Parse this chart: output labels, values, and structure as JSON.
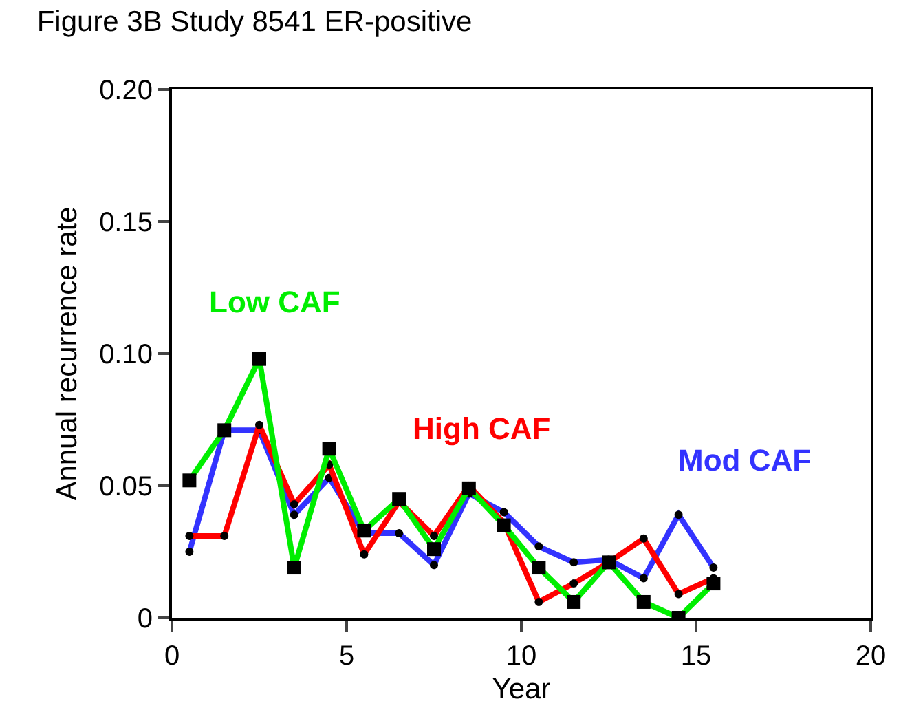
{
  "chart_data": {
    "type": "line",
    "title": "Figure 3B Study 8541 ER-positive",
    "xlabel": "Year",
    "ylabel": "Annual recurrence rate",
    "x": [
      0.5,
      1.5,
      2.5,
      3.5,
      4.5,
      5.5,
      6.5,
      7.5,
      8.5,
      9.5,
      10.5,
      11.5,
      12.5,
      13.5,
      14.5,
      15.5
    ],
    "series": [
      {
        "name": "Low CAF",
        "color": "#00ee00",
        "marker": "square",
        "values": [
          0.052,
          0.071,
          0.098,
          0.019,
          0.064,
          0.033,
          0.045,
          0.026,
          0.049,
          0.035,
          0.019,
          0.006,
          0.021,
          0.006,
          0.0,
          0.013
        ]
      },
      {
        "name": "High CAF",
        "color": "#ff0000",
        "marker": "circle",
        "values": [
          0.031,
          0.031,
          0.073,
          0.043,
          0.058,
          0.024,
          0.044,
          0.031,
          0.05,
          0.036,
          0.006,
          0.013,
          0.021,
          0.03,
          0.009,
          0.015
        ]
      },
      {
        "name": "Mod CAF",
        "color": "#3333ff",
        "marker": "circle",
        "values": [
          0.025,
          0.071,
          0.071,
          0.039,
          0.053,
          0.032,
          0.032,
          0.02,
          0.047,
          0.04,
          0.027,
          0.021,
          0.022,
          0.015,
          0.039,
          0.019
        ]
      }
    ],
    "xlim": [
      0,
      20
    ],
    "xticks": [
      0,
      5,
      10,
      15,
      20
    ],
    "ylim": [
      0,
      0.2
    ],
    "yticks": [
      {
        "value": 0,
        "label": "0"
      },
      {
        "value": 0.05,
        "label": "0.05"
      },
      {
        "value": 0.1,
        "label": "0.10"
      },
      {
        "value": 0.15,
        "label": "0.15"
      },
      {
        "value": 0.2,
        "label": "0.20"
      }
    ],
    "grid": false,
    "legend": false
  }
}
